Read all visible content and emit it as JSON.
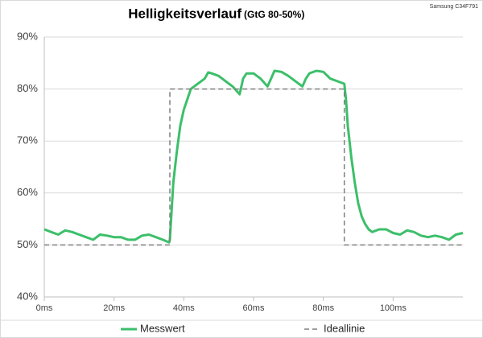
{
  "chart_data": {
    "type": "line",
    "title": "Helligkeitsverlauf",
    "subtitle": "(GtG 80-50%)",
    "watermark": "Samsung C34F791",
    "xlim": [
      0,
      120
    ],
    "xticks": [
      {
        "value": 0,
        "label": "0ms"
      },
      {
        "value": 20,
        "label": "20ms"
      },
      {
        "value": 40,
        "label": "40ms"
      },
      {
        "value": 60,
        "label": "60ms"
      },
      {
        "value": 80,
        "label": "80ms"
      },
      {
        "value": 100,
        "label": "100ms"
      }
    ],
    "ylim": [
      40,
      90
    ],
    "yticks": [
      {
        "value": 40,
        "label": "40%"
      },
      {
        "value": 50,
        "label": "50%"
      },
      {
        "value": 60,
        "label": "60%"
      },
      {
        "value": 70,
        "label": "70%"
      },
      {
        "value": 80,
        "label": "80%"
      },
      {
        "value": 90,
        "label": "90%"
      }
    ],
    "grid": true,
    "legend": "bottom",
    "series": [
      {
        "name": "Messwert",
        "color": "#3cbf6a",
        "dashed": false,
        "x": [
          0,
          2,
          4,
          6,
          8,
          10,
          12,
          14,
          16,
          18,
          20,
          22,
          24,
          26,
          28,
          30,
          32,
          34,
          35.8,
          36,
          37,
          38,
          39,
          40,
          41,
          42,
          44,
          46,
          47,
          48,
          50,
          52,
          54,
          56,
          57,
          58,
          60,
          62,
          64,
          65,
          66,
          68,
          70,
          72,
          74,
          75,
          76,
          78,
          80,
          82,
          84,
          86,
          86.5,
          87,
          88,
          89,
          90,
          91,
          92,
          93,
          94,
          96,
          98,
          100,
          102,
          104,
          106,
          108,
          110,
          112,
          114,
          116,
          118,
          120
        ],
        "values": [
          53,
          52.5,
          52,
          52.8,
          52.5,
          52,
          51.5,
          51,
          52,
          51.8,
          51.5,
          51.5,
          51,
          51,
          51.8,
          52,
          51.5,
          51,
          50.5,
          51,
          62,
          68,
          73,
          76,
          78,
          80,
          81,
          82,
          83.2,
          83,
          82.5,
          81.5,
          80.5,
          79,
          82,
          83,
          83,
          82,
          80.5,
          82,
          83.5,
          83.3,
          82.5,
          81.5,
          80.5,
          82,
          83,
          83.5,
          83.3,
          82,
          81.5,
          81,
          78,
          73,
          67,
          62,
          58,
          55.5,
          54,
          53,
          52.5,
          53,
          53,
          52.3,
          52,
          52.8,
          52.5,
          51.8,
          51.5,
          51.8,
          51.5,
          51,
          52,
          52.3
        ]
      },
      {
        "name": "Ideallinie",
        "color": "#7f7f7f",
        "dashed": true,
        "x": [
          0,
          36,
          36,
          86,
          86,
          120
        ],
        "values": [
          50,
          50,
          80,
          80,
          50,
          50
        ]
      }
    ]
  }
}
